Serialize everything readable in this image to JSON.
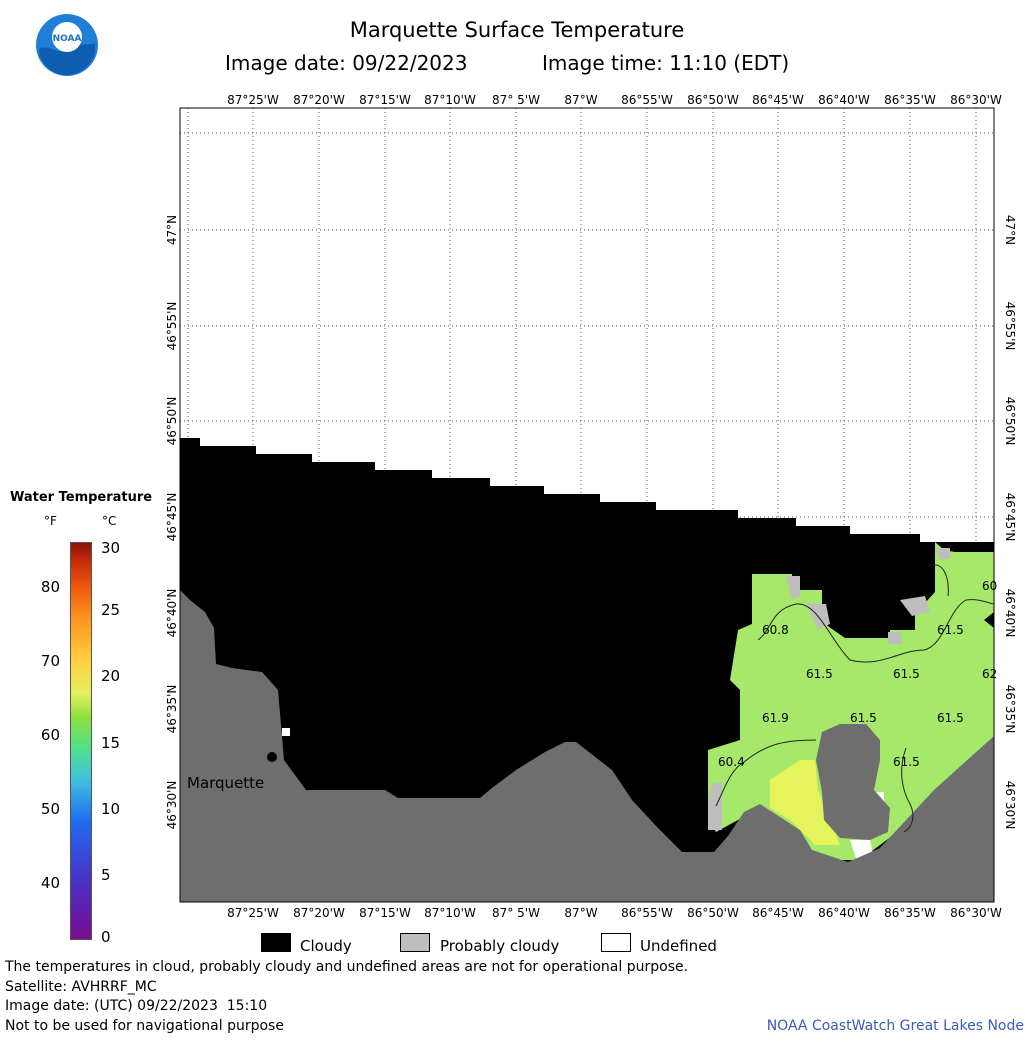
{
  "header": {
    "title": "Marquette Surface Temperature",
    "image_date": "Image date: 09/22/2023",
    "image_time": "Image time: 11:10 (EDT)"
  },
  "logo": {
    "text": "NOAA"
  },
  "map": {
    "lon_labels": [
      "87°25'W",
      "87°20'W",
      "87°15'W",
      "87°10'W",
      "87° 5'W",
      "87°W",
      "86°55'W",
      "86°50'W",
      "86°45'W",
      "86°40'W",
      "86°35'W",
      "86°30'W"
    ],
    "lat_labels": [
      "47°N",
      "46°55'N",
      "46°50'N",
      "46°45'N",
      "46°40'N",
      "46°35'N",
      "46°30'N"
    ],
    "city": "Marquette",
    "temp_labels": [
      "60",
      "60.8",
      "61.5",
      "61.5",
      "61.5",
      "62",
      "61.9",
      "61.5",
      "61.5",
      "60.4",
      "61.5"
    ],
    "colors": {
      "cloudy": "#000000",
      "probably_cloudy": "#bebebe",
      "land": "#6e6e6e",
      "water_green": "#a6e86a",
      "water_yellow": "#e4f45a"
    }
  },
  "legend": {
    "title": "Water Temperature",
    "unit_f": "°F",
    "unit_c": "°C",
    "f_ticks": [
      "80",
      "70",
      "60",
      "50",
      "40"
    ],
    "c_ticks": [
      "30",
      "25",
      "20",
      "15",
      "10",
      "5",
      "0"
    ],
    "range_f": [
      32,
      86
    ],
    "range_c": [
      0,
      30
    ]
  },
  "key": {
    "cloudy": "Cloudy",
    "probably_cloudy": "Probably cloudy",
    "undefined": "Undefined"
  },
  "footer": {
    "disclaimer": "The temperatures in cloud, probably cloudy and undefined areas are not for operational purpose.",
    "satellite": "Satellite: AVHRRF_MC",
    "utc_date": "Image date: (UTC) 09/22/2023  15:10",
    "nav_warning": "Not to be used for navigational purpose",
    "credit": "NOAA CoastWatch Great Lakes Node"
  }
}
